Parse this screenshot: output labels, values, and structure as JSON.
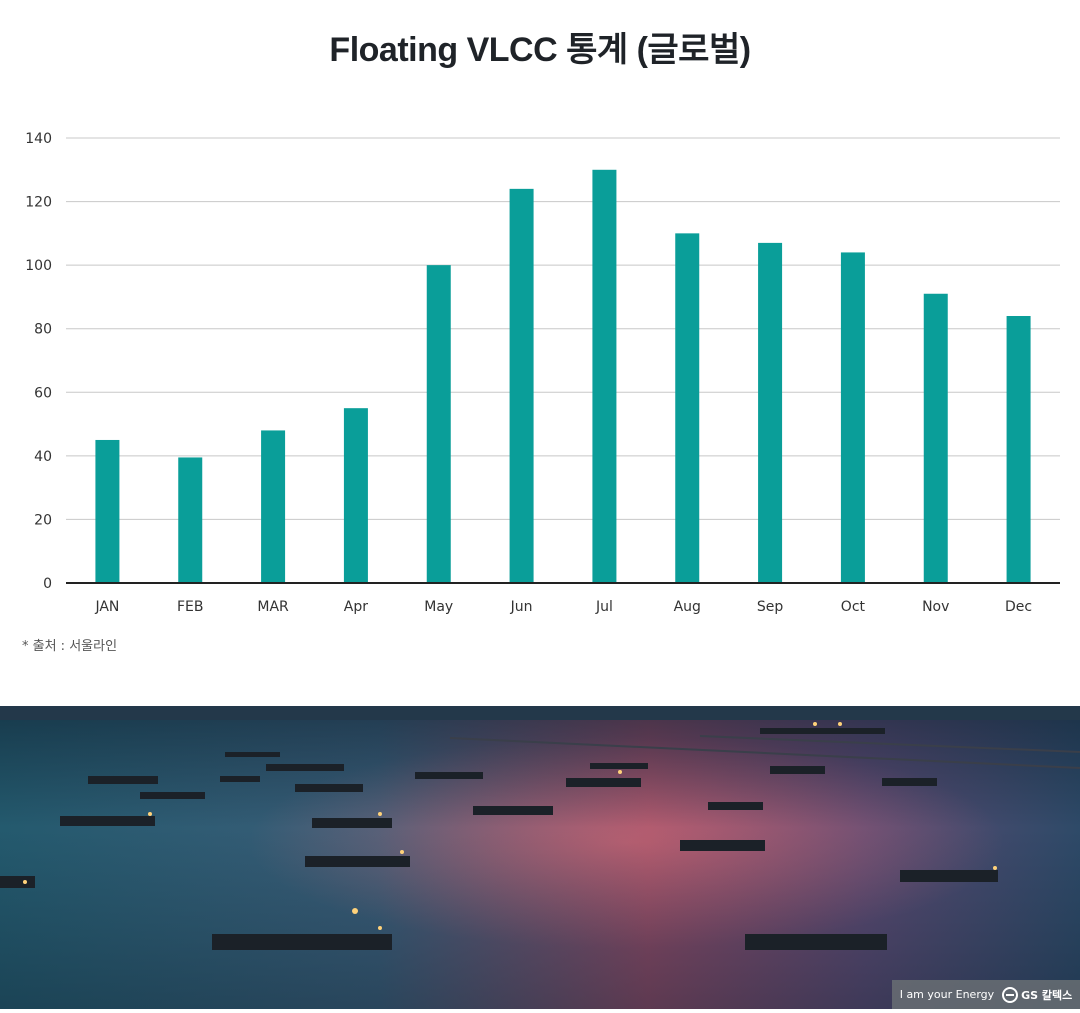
{
  "title": "Floating VLCC 통계 (글로벌)",
  "source_note": "* 출처 : 서울라인",
  "brand": {
    "slogan": "I am your Energy",
    "company": "GS 칼텍스"
  },
  "colors": {
    "bar": "#0a9e99",
    "grid": "#c8c8c8",
    "axis": "#222222"
  },
  "chart_data": {
    "type": "bar",
    "title": "Floating VLCC 통계 (글로벌)",
    "xlabel": "",
    "ylabel": "",
    "categories": [
      "JAN",
      "FEB",
      "MAR",
      "Apr",
      "May",
      "Jun",
      "Jul",
      "Aug",
      "Sep",
      "Oct",
      "Nov",
      "Dec"
    ],
    "values": [
      45,
      39.5,
      48,
      55,
      100,
      124,
      130,
      110,
      107,
      104,
      91,
      84
    ],
    "ylim": [
      0,
      140
    ],
    "yticks": [
      0,
      20,
      40,
      60,
      80,
      100,
      120,
      140
    ],
    "grid": true,
    "legend": "none"
  }
}
